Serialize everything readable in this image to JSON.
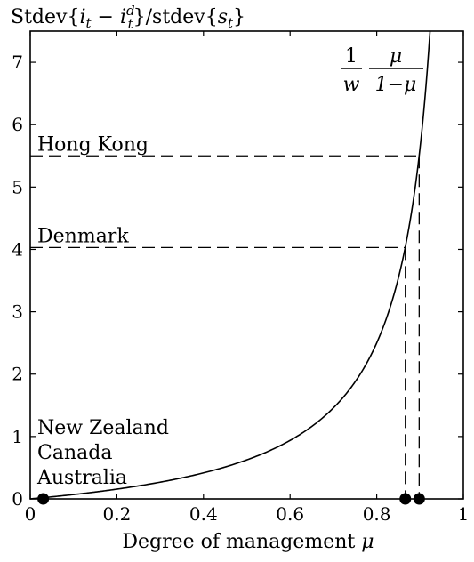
{
  "chart_data": {
    "type": "line",
    "title": "",
    "ylabel": "Stdev{i_t − i_t^d}/stdev{s_t}",
    "ylabel_parts": {
      "pre": "Stdev{",
      "i": "i",
      "t1": "t",
      "minus": " − ",
      "i2": "i",
      "sup_d": "d",
      "t2": "t",
      "mid": "}/stdev{",
      "s": "s",
      "t3": "t",
      "post": "}"
    },
    "xlabel": "Degree of management μ",
    "xlabel_parts": {
      "text": "Degree of management ",
      "mu": "μ"
    },
    "xlim": [
      0,
      1
    ],
    "ylim": [
      0,
      7.5
    ],
    "x_ticks": [
      0,
      0.2,
      0.4,
      0.6,
      0.8,
      1
    ],
    "x_tick_labels": [
      "0",
      "0.2",
      "0.4",
      "0.6",
      "0.8",
      "1"
    ],
    "y_ticks": [
      0,
      1,
      2,
      3,
      4,
      5,
      6,
      7
    ],
    "y_tick_labels": [
      "0",
      "1",
      "2",
      "3",
      "4",
      "5",
      "6",
      "7"
    ],
    "curve": {
      "formula_w": 1.6,
      "formula": {
        "num1": "1",
        "den1": "w",
        "num2": "μ",
        "den2": "1−μ"
      }
    },
    "reference_lines": [
      {
        "label": "Hong Kong",
        "y": 5.5,
        "x": 0.898
      },
      {
        "label": "Denmark",
        "y": 4.03,
        "x": 0.866
      }
    ],
    "points": [
      {
        "x": 0.03,
        "y": 0
      },
      {
        "x": 0.866,
        "y": 0
      },
      {
        "x": 0.898,
        "y": 0
      }
    ],
    "point_group_labels": [
      "New Zealand",
      "Canada",
      "Australia"
    ]
  }
}
